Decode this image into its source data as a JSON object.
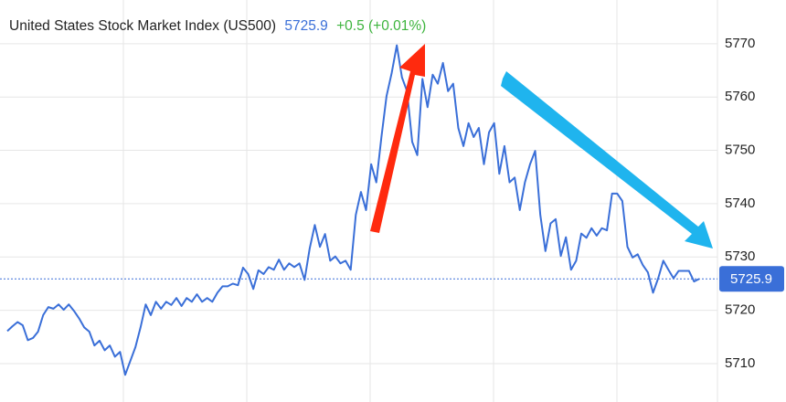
{
  "chart_data": {
    "type": "line",
    "title": "United States Stock Market Index (US500)",
    "price": 5725.9,
    "change": "+0.5 (+0.01%)",
    "series": [
      {
        "name": "US500",
        "color": "#3a6fd8",
        "values": [
          5716.1,
          5717,
          5717.8,
          5717.2,
          5714.4,
          5714.8,
          5716,
          5719.1,
          5720.6,
          5720.3,
          5721.1,
          5720.1,
          5721.1,
          5719.9,
          5718.5,
          5716.8,
          5716,
          5713.4,
          5714.3,
          5712.5,
          5713.4,
          5711.3,
          5712.2,
          5707.9,
          5710.5,
          5713.1,
          5716.8,
          5721.1,
          5719.1,
          5721.6,
          5720.3,
          5721.6,
          5721,
          5722.3,
          5720.8,
          5722.3,
          5721.6,
          5723,
          5721.6,
          5722.3,
          5721.6,
          5723.3,
          5724.5,
          5724.5,
          5725,
          5724.7,
          5728,
          5726.8,
          5724,
          5727.5,
          5726.8,
          5728.1,
          5727.6,
          5729.5,
          5727.6,
          5728.8,
          5728.1,
          5728.8,
          5725.7,
          5731.6,
          5736,
          5731.9,
          5734.3,
          5729.3,
          5730.1,
          5728.8,
          5729.3,
          5727.6,
          5737.9,
          5742.2,
          5738.8,
          5747.4,
          5744,
          5752.5,
          5760.2,
          5764.5,
          5769.7,
          5763.7,
          5761.1,
          5751.6,
          5749.1,
          5763.4,
          5758.1,
          5764.2,
          5762.5,
          5766.4,
          5761.1,
          5762.5,
          5754.2,
          5750.8,
          5755.1,
          5752.5,
          5754.2,
          5747.4,
          5753.4,
          5755.1,
          5745.6,
          5750.8,
          5744,
          5744.9,
          5738.8,
          5744,
          5747.4,
          5749.9,
          5737.9,
          5731.1,
          5736.3,
          5737.1,
          5730.2,
          5733.7,
          5727.6,
          5729.3,
          5734.4,
          5733.6,
          5735.4,
          5734,
          5735.4,
          5735,
          5741.9,
          5741.9,
          5740.5,
          5731.9,
          5729.9,
          5730.5,
          5728.5,
          5727.1,
          5723.3,
          5726,
          5729.3,
          5727.6,
          5726,
          5727.4,
          5727.4,
          5727.4,
          5725.4,
          5725.9
        ]
      }
    ],
    "ylim": [
      5702.8,
      5778.2
    ],
    "yticks": [
      5710,
      5720,
      5730,
      5740,
      5750,
      5760,
      5770
    ],
    "grid": true
  }
}
